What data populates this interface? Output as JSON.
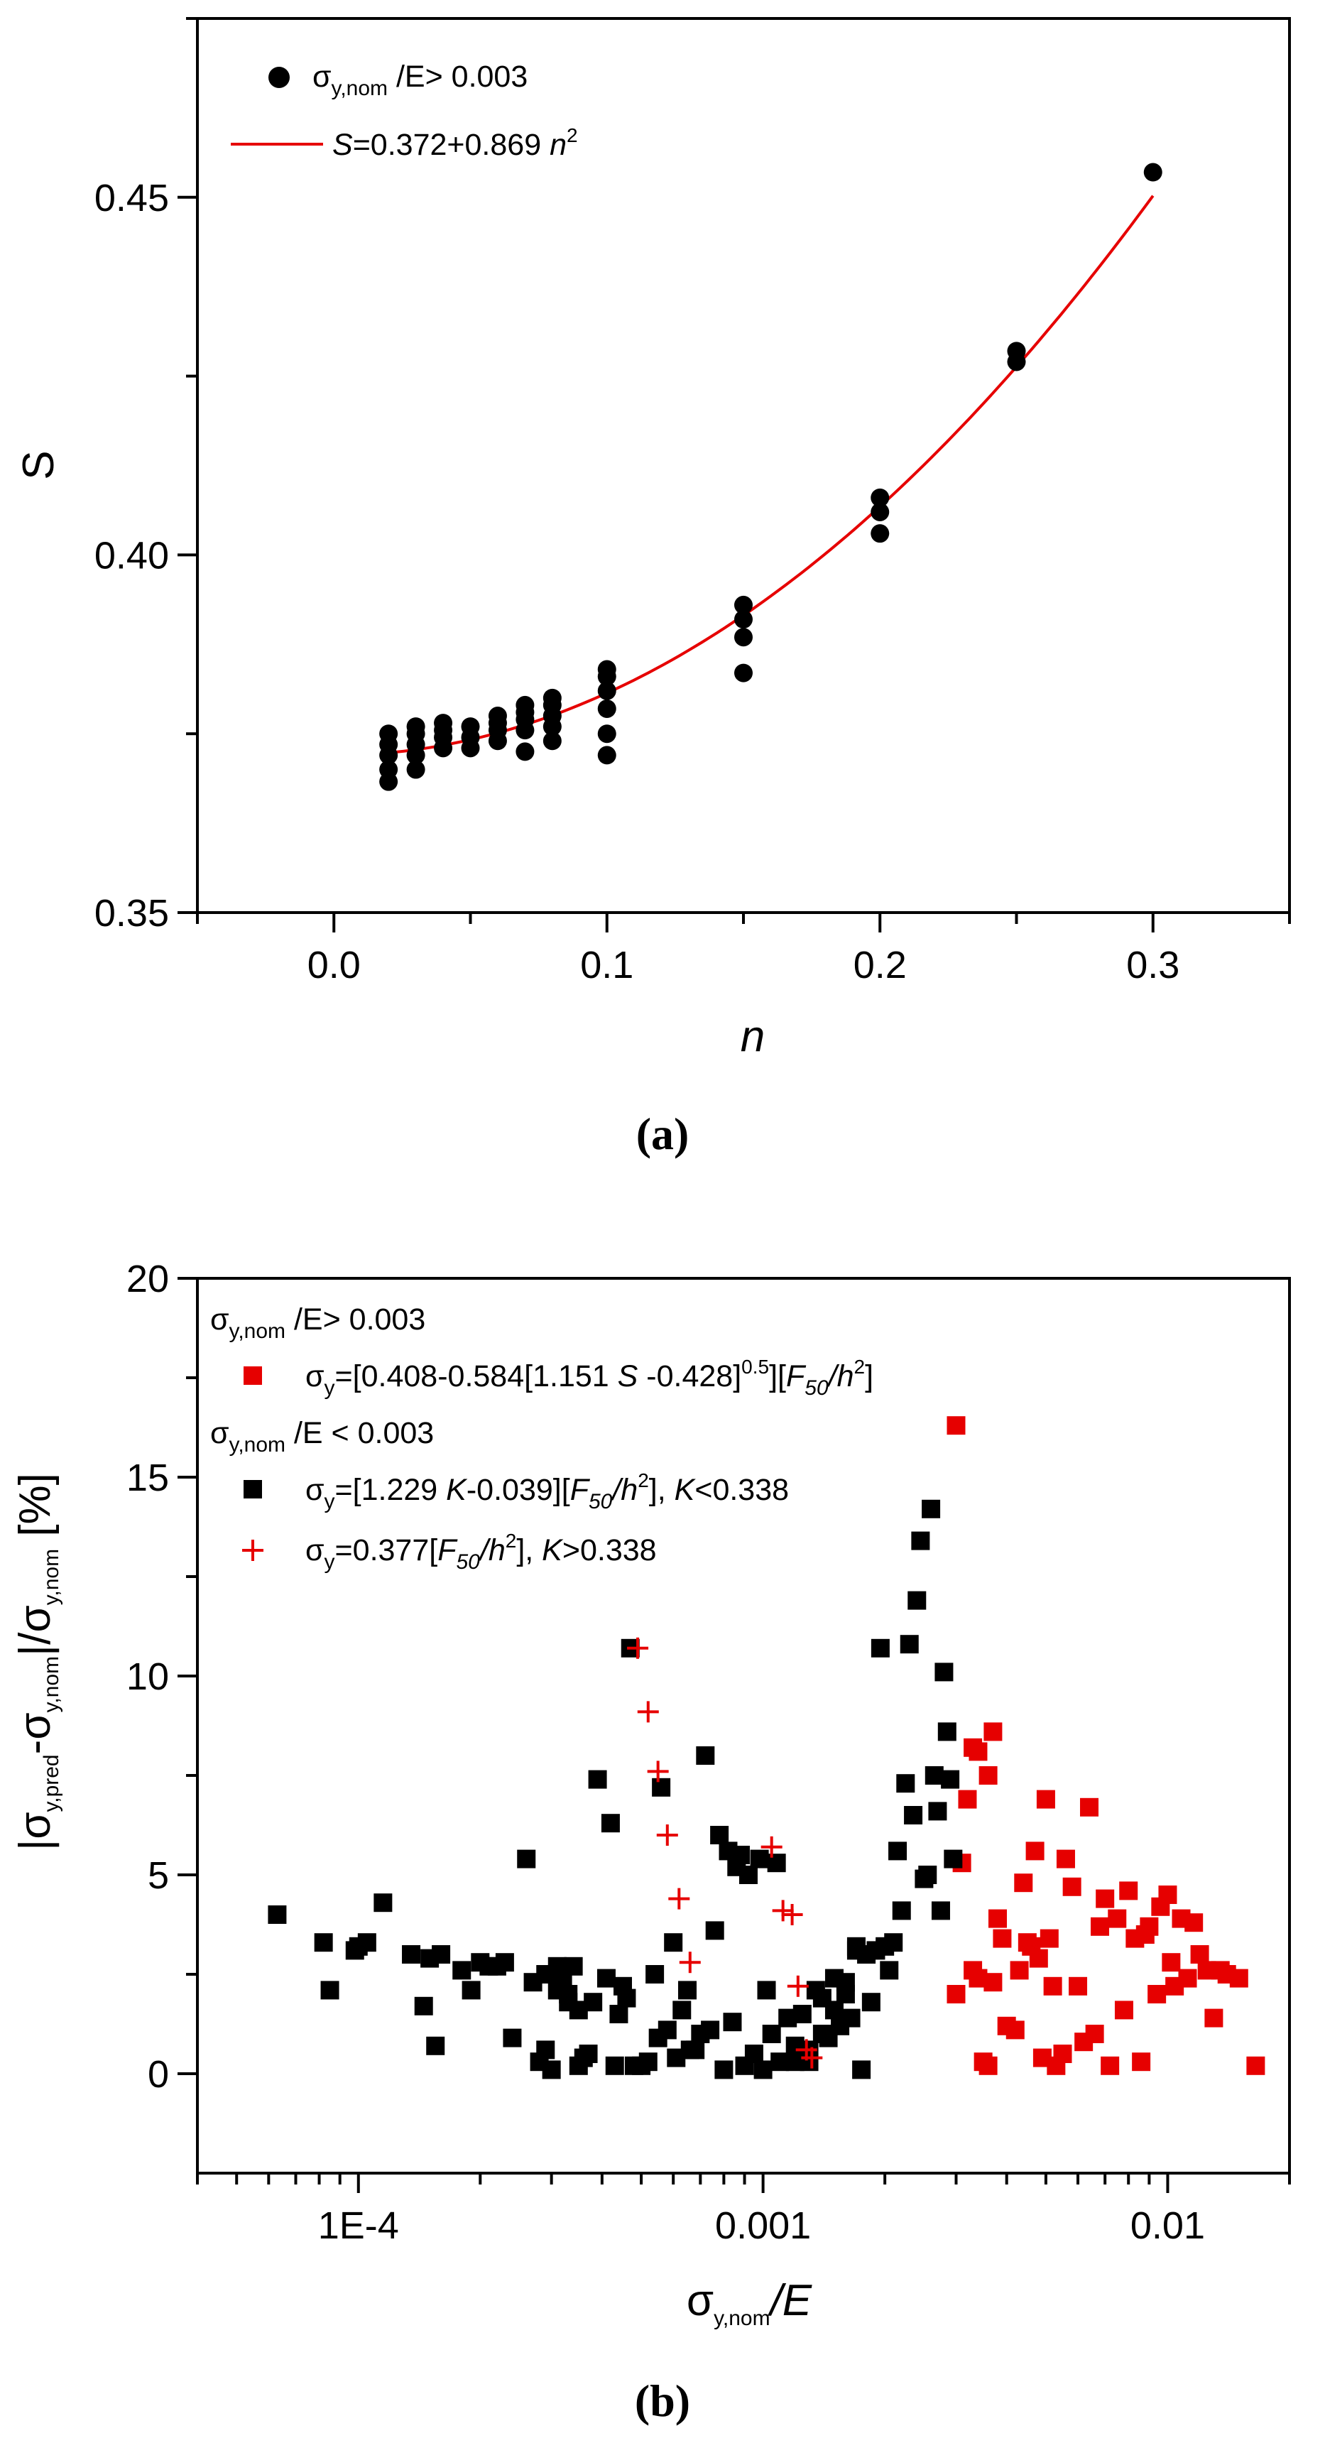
{
  "colors": {
    "black": "#000000",
    "red": "#e60000"
  },
  "chart_data": [
    {
      "panel": "(a)",
      "type": "scatter",
      "xlabel": "n",
      "ylabel": "S",
      "xlim": [
        -0.05,
        0.35
      ],
      "ylim": [
        0.35,
        0.475
      ],
      "xticks": [
        0.0,
        0.1,
        0.2,
        0.3
      ],
      "xtick_labels": [
        "0.0",
        "0.1",
        "0.2",
        "0.3"
      ],
      "yticks": [
        0.35,
        0.4,
        0.45
      ],
      "ytick_labels": [
        "0.35",
        "0.40",
        "0.45"
      ],
      "legend": {
        "position": "top-left",
        "points_label": {
          "sigma": "σ",
          "sub": "y,nom",
          "rest": " /E> 0.003"
        },
        "fit_label": {
          "prefix": "S",
          "eq": "=0.372+0.869 ",
          "var": "n",
          "sup": "2"
        }
      },
      "fit": {
        "a": 0.372,
        "b": 0.869,
        "x_range": [
          0.02,
          0.3
        ]
      },
      "points": [
        [
          0.02,
          0.3683
        ],
        [
          0.02,
          0.37
        ],
        [
          0.02,
          0.372
        ],
        [
          0.02,
          0.3735
        ],
        [
          0.02,
          0.375
        ],
        [
          0.03,
          0.37
        ],
        [
          0.03,
          0.372
        ],
        [
          0.03,
          0.3735
        ],
        [
          0.03,
          0.375
        ],
        [
          0.03,
          0.376
        ],
        [
          0.04,
          0.373
        ],
        [
          0.04,
          0.3745
        ],
        [
          0.04,
          0.3755
        ],
        [
          0.04,
          0.3765
        ],
        [
          0.05,
          0.373
        ],
        [
          0.05,
          0.3745
        ],
        [
          0.05,
          0.376
        ],
        [
          0.06,
          0.374
        ],
        [
          0.06,
          0.3755
        ],
        [
          0.06,
          0.3765
        ],
        [
          0.06,
          0.3775
        ],
        [
          0.07,
          0.3725
        ],
        [
          0.07,
          0.3755
        ],
        [
          0.07,
          0.377
        ],
        [
          0.07,
          0.378
        ],
        [
          0.07,
          0.379
        ],
        [
          0.08,
          0.374
        ],
        [
          0.08,
          0.376
        ],
        [
          0.08,
          0.3775
        ],
        [
          0.08,
          0.379
        ],
        [
          0.08,
          0.38
        ],
        [
          0.1,
          0.372
        ],
        [
          0.1,
          0.375
        ],
        [
          0.1,
          0.3785
        ],
        [
          0.1,
          0.381
        ],
        [
          0.1,
          0.383
        ],
        [
          0.1,
          0.384
        ],
        [
          0.15,
          0.3835
        ],
        [
          0.15,
          0.3885
        ],
        [
          0.15,
          0.391
        ],
        [
          0.15,
          0.393
        ],
        [
          0.2,
          0.403
        ],
        [
          0.2,
          0.406
        ],
        [
          0.2,
          0.408
        ],
        [
          0.25,
          0.427
        ],
        [
          0.25,
          0.4285
        ],
        [
          0.3,
          0.4535
        ]
      ]
    },
    {
      "panel": "(b)",
      "type": "scatter",
      "xscale": "log",
      "xlabel": {
        "sigma": "σ",
        "sub": "y,nom",
        "rest": "/E"
      },
      "ylabel": {
        "open": "|σ",
        "sub1": "y,pred",
        "mid": "-σ",
        "sub2": "y,nom",
        "mid2": "|/σ",
        "sub3": "y,nom",
        "unit": " [%]"
      },
      "xlim": [
        4e-05,
        0.02
      ],
      "ylim": [
        -2.5,
        20
      ],
      "xticks": [
        0.0001,
        0.001,
        0.01
      ],
      "xtick_labels": [
        "1E-4",
        "0.001",
        "0.01"
      ],
      "yticks": [
        0,
        5,
        10,
        15,
        20
      ],
      "ytick_labels": [
        "0",
        "5",
        "10",
        "15",
        "20"
      ],
      "legend": {
        "position": "top-left",
        "header1": {
          "sigma": "σ",
          "sub": "y,nom",
          "rest": " /E> 0.003"
        },
        "series1": {
          "sigma": "σ",
          "sub": "y",
          "text1": "=[0.408-0.584[1.151 ",
          "S": "S",
          "text2": " -0.428]",
          "sup": "0.5",
          "text3": "][",
          "F": "F",
          "Fsub": "50",
          "slash": "/",
          "h": "h",
          "hsup": "2",
          "close": "]"
        },
        "header2": {
          "sigma": "σ",
          "sub": "y,nom",
          "rest": " /E < 0.003"
        },
        "series2": {
          "sigma": "σ",
          "sub": "y",
          "text1": "=[1.229 ",
          "K": "K",
          "text2": "-0.039][",
          "F": "F",
          "Fsub": "50",
          "slash": "/",
          "h": "h",
          "hsup": "2",
          "text3": "], ",
          "K2": "K",
          "cond": "<0.338"
        },
        "series3": {
          "sigma": "σ",
          "sub": "y",
          "text1": "=0.377[",
          "F": "F",
          "Fsub": "50",
          "slash": "/",
          "h": "h",
          "hsup": "2",
          "text3": "], ",
          "K2": "K",
          "cond": ">0.338"
        }
      },
      "series": [
        {
          "name": "red squares (σy,nom/E > 0.003)",
          "marker": "square",
          "color": "red",
          "points": [
            [
              0.003,
              16.3
            ],
            [
              0.0031,
              5.3
            ],
            [
              0.003,
              2.0
            ],
            [
              0.0032,
              6.9
            ],
            [
              0.0033,
              8.2
            ],
            [
              0.0034,
              8.1
            ],
            [
              0.0036,
              7.5
            ],
            [
              0.0037,
              8.6
            ],
            [
              0.0038,
              3.9
            ],
            [
              0.0039,
              3.4
            ],
            [
              0.0033,
              2.6
            ],
            [
              0.0034,
              2.4
            ],
            [
              0.0035,
              0.3
            ],
            [
              0.0036,
              0.2
            ],
            [
              0.0037,
              2.3
            ],
            [
              0.004,
              1.2
            ],
            [
              0.0042,
              1.1
            ],
            [
              0.0043,
              2.6
            ],
            [
              0.0044,
              4.8
            ],
            [
              0.0045,
              3.3
            ],
            [
              0.0046,
              3.2
            ],
            [
              0.0047,
              5.6
            ],
            [
              0.0048,
              2.9
            ],
            [
              0.0049,
              0.4
            ],
            [
              0.005,
              6.9
            ],
            [
              0.0051,
              3.4
            ],
            [
              0.0052,
              2.2
            ],
            [
              0.0053,
              0.2
            ],
            [
              0.0055,
              0.5
            ],
            [
              0.0056,
              5.4
            ],
            [
              0.0058,
              4.7
            ],
            [
              0.006,
              2.2
            ],
            [
              0.0062,
              0.8
            ],
            [
              0.0064,
              6.7
            ],
            [
              0.0066,
              1.0
            ],
            [
              0.0068,
              3.7
            ],
            [
              0.007,
              4.4
            ],
            [
              0.0072,
              0.2
            ],
            [
              0.0075,
              3.9
            ],
            [
              0.0078,
              1.6
            ],
            [
              0.008,
              4.6
            ],
            [
              0.0083,
              3.4
            ],
            [
              0.0086,
              0.3
            ],
            [
              0.0088,
              3.5
            ],
            [
              0.009,
              3.7
            ],
            [
              0.0094,
              2.0
            ],
            [
              0.0096,
              4.2
            ],
            [
              0.01,
              4.5
            ],
            [
              0.0102,
              2.8
            ],
            [
              0.0104,
              2.2
            ],
            [
              0.0108,
              3.9
            ],
            [
              0.0112,
              2.4
            ],
            [
              0.0116,
              3.8
            ],
            [
              0.012,
              3.0
            ],
            [
              0.0125,
              2.6
            ],
            [
              0.013,
              1.4
            ],
            [
              0.0135,
              2.6
            ],
            [
              0.014,
              2.5
            ],
            [
              0.015,
              2.4
            ],
            [
              0.0165,
              0.2
            ]
          ]
        },
        {
          "name": "black squares (σy,nom/E < 0.003, K<0.338)",
          "marker": "square",
          "color": "black",
          "points": [
            [
              6.3e-05,
              4.0
            ],
            [
              8.2e-05,
              3.3
            ],
            [
              8.5e-05,
              2.1
            ],
            [
              9.8e-05,
              3.1
            ],
            [
              0.0001,
              3.2
            ],
            [
              0.000105,
              3.3
            ],
            [
              0.000115,
              4.3
            ],
            [
              0.000135,
              3.0
            ],
            [
              0.000145,
              1.7
            ],
            [
              0.00015,
              2.9
            ],
            [
              0.000155,
              0.7
            ],
            [
              0.00016,
              3.0
            ],
            [
              0.00018,
              2.6
            ],
            [
              0.00019,
              2.1
            ],
            [
              0.0002,
              2.8
            ],
            [
              0.00021,
              2.7
            ],
            [
              0.00022,
              2.7
            ],
            [
              0.00023,
              2.8
            ],
            [
              0.00024,
              0.9
            ],
            [
              0.00026,
              5.4
            ],
            [
              0.00027,
              2.3
            ],
            [
              0.00028,
              0.3
            ],
            [
              0.00029,
              2.5
            ],
            [
              0.0003,
              0.1
            ],
            [
              0.00031,
              2.7
            ],
            [
              0.00032,
              2.3
            ],
            [
              0.00033,
              2.0
            ],
            [
              0.00034,
              2.7
            ],
            [
              0.00035,
              1.6
            ],
            [
              0.00036,
              0.4
            ],
            [
              0.00037,
              0.5
            ],
            [
              0.00038,
              1.8
            ],
            [
              0.00039,
              7.4
            ],
            [
              0.00041,
              2.4
            ],
            [
              0.00042,
              6.3
            ],
            [
              0.00043,
              0.2
            ],
            [
              0.00044,
              1.5
            ],
            [
              0.00045,
              2.2
            ],
            [
              0.00046,
              1.9
            ],
            [
              0.00047,
              10.7
            ],
            [
              0.00048,
              0.2
            ],
            [
              0.0005,
              0.2
            ],
            [
              0.00052,
              0.3
            ],
            [
              0.00054,
              2.5
            ],
            [
              0.00055,
              0.9
            ],
            [
              0.00056,
              7.2
            ],
            [
              0.00058,
              1.1
            ],
            [
              0.0006,
              3.3
            ],
            [
              0.00061,
              0.4
            ],
            [
              0.00063,
              1.6
            ],
            [
              0.00065,
              2.1
            ],
            [
              0.00066,
              0.6
            ],
            [
              0.00068,
              0.6
            ],
            [
              0.0007,
              1.0
            ],
            [
              0.00072,
              8.0
            ],
            [
              0.00074,
              1.1
            ],
            [
              0.00076,
              3.6
            ],
            [
              0.00078,
              6.0
            ],
            [
              0.0008,
              0.1
            ],
            [
              0.00082,
              5.6
            ],
            [
              0.00084,
              1.3
            ],
            [
              0.00086,
              5.2
            ],
            [
              0.00088,
              5.5
            ],
            [
              0.0009,
              0.2
            ],
            [
              0.00092,
              5.0
            ],
            [
              0.00095,
              0.5
            ],
            [
              0.00098,
              5.4
            ],
            [
              0.001,
              0.1
            ],
            [
              0.00102,
              2.1
            ],
            [
              0.00105,
              1.0
            ],
            [
              0.00108,
              5.3
            ],
            [
              0.0011,
              0.3
            ],
            [
              0.00115,
              1.4
            ],
            [
              0.0012,
              0.7
            ],
            [
              0.00125,
              1.5
            ],
            [
              0.0013,
              0.3
            ],
            [
              0.00135,
              2.1
            ],
            [
              0.0014,
              1.9
            ],
            [
              0.00145,
              0.9
            ],
            [
              0.0015,
              2.4
            ],
            [
              0.00155,
              1.2
            ],
            [
              0.0016,
              2.3
            ],
            [
              0.00165,
              1.4
            ],
            [
              0.0017,
              3.2
            ],
            [
              0.00175,
              0.1
            ],
            [
              0.0018,
              3.0
            ],
            [
              0.00185,
              1.8
            ],
            [
              0.0019,
              3.1
            ],
            [
              0.00195,
              10.7
            ],
            [
              0.002,
              3.2
            ],
            [
              0.00205,
              2.6
            ],
            [
              0.0021,
              3.3
            ],
            [
              0.00215,
              5.6
            ],
            [
              0.0022,
              4.1
            ],
            [
              0.00225,
              7.3
            ],
            [
              0.0023,
              10.8
            ],
            [
              0.00235,
              6.5
            ],
            [
              0.0024,
              11.9
            ],
            [
              0.00245,
              13.4
            ],
            [
              0.0025,
              4.9
            ],
            [
              0.00255,
              5.0
            ],
            [
              0.0026,
              14.2
            ],
            [
              0.00265,
              7.5
            ],
            [
              0.0027,
              6.6
            ],
            [
              0.00275,
              4.1
            ],
            [
              0.0028,
              10.1
            ],
            [
              0.00285,
              8.6
            ],
            [
              0.0029,
              7.4
            ],
            [
              0.00295,
              5.4
            ],
            [
              0.0017,
              3.1
            ],
            [
              0.0016,
              2.0
            ],
            [
              0.0015,
              1.6
            ],
            [
              0.0014,
              1.0
            ],
            [
              0.0013,
              0.6
            ],
            [
              0.0012,
              0.3
            ],
            [
              0.00035,
              0.2
            ],
            [
              0.00033,
              1.8
            ],
            [
              0.00031,
              2.1
            ],
            [
              0.00029,
              0.6
            ]
          ]
        },
        {
          "name": "red crosses (σy,nom/E < 0.003, K>0.338)",
          "marker": "plus",
          "color": "red",
          "points": [
            [
              0.00049,
              10.7
            ],
            [
              0.00052,
              9.1
            ],
            [
              0.00055,
              7.6
            ],
            [
              0.00058,
              6.0
            ],
            [
              0.00062,
              4.4
            ],
            [
              0.00066,
              2.8
            ],
            [
              0.00105,
              5.7
            ],
            [
              0.00112,
              4.1
            ],
            [
              0.00118,
              4.0
            ],
            [
              0.00122,
              2.2
            ],
            [
              0.00128,
              0.6
            ],
            [
              0.00132,
              0.4
            ]
          ]
        }
      ]
    }
  ]
}
